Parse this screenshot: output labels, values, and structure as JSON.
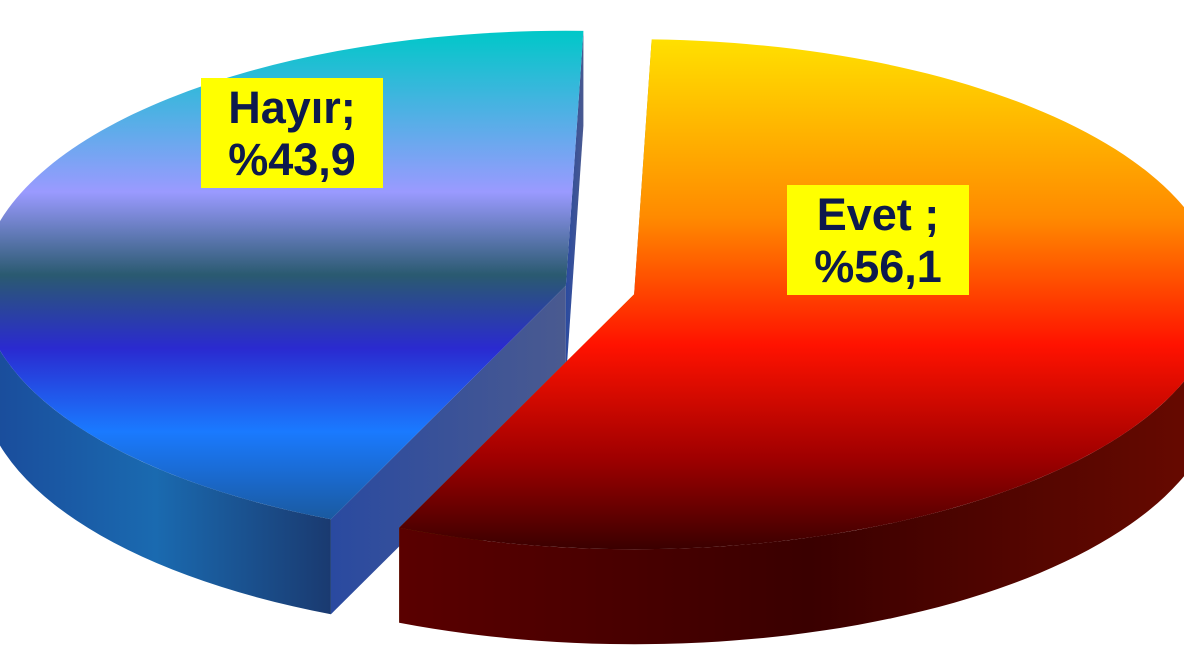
{
  "chart_data": {
    "type": "pie",
    "style": "3d-exploded",
    "title": "",
    "slices": [
      {
        "label": "Evet",
        "value": 56.1,
        "label_lines": [
          "Evet ;",
          "%56,1"
        ],
        "color": "#ff1a00"
      },
      {
        "label": "Hayır",
        "value": 43.9,
        "label_lines": [
          "Hayır;",
          "%43,9"
        ],
        "color": "#1e78ff"
      }
    ],
    "legend": "none",
    "label_background": "#ffff00",
    "label_color": "#0d1a4d"
  }
}
